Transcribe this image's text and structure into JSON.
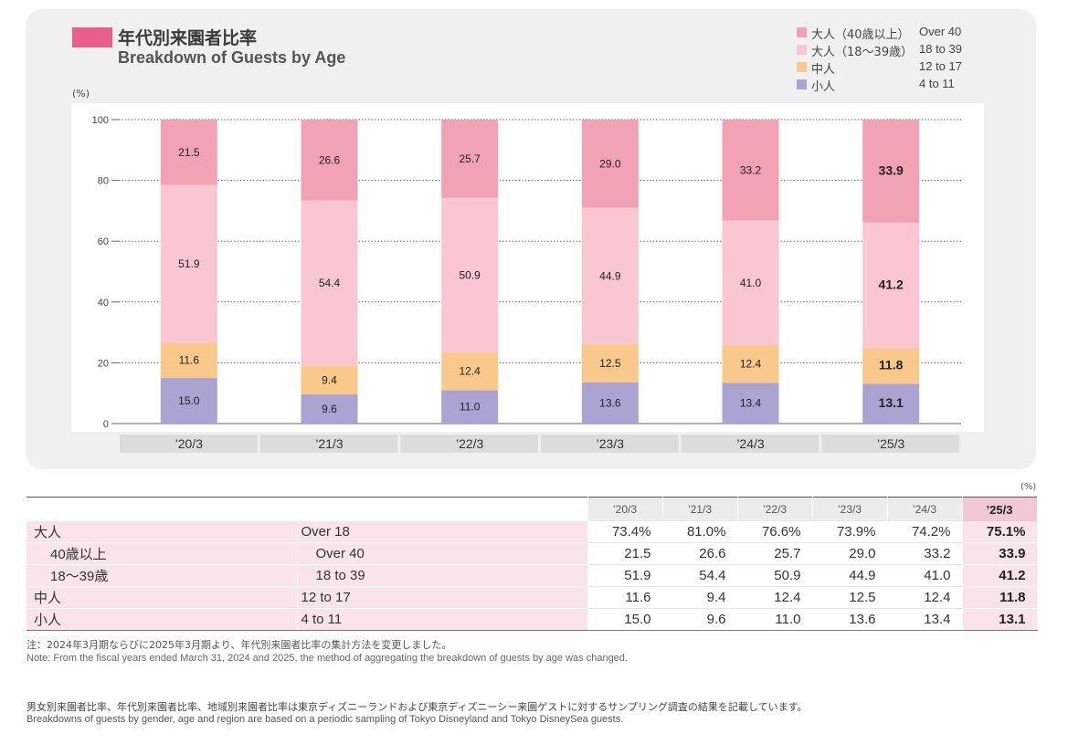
{
  "title": {
    "jp": "年代別来園者比率",
    "en": "Breakdown of Guests by Age"
  },
  "colors": {
    "title_mark": "#e8608a",
    "over40": "#f2a2b5",
    "age18to39": "#f9c6d2",
    "age12to17": "#f8c98a",
    "age4to11": "#aba3d1",
    "panel_bg": "#f0f0f0",
    "axis_label_bg": "#dcdcdc"
  },
  "legend": [
    {
      "jp": "大人（40歳以上）",
      "en": "Over 40",
      "color_key": "over40"
    },
    {
      "jp": "大人（18〜39歳）",
      "en": "18 to 39",
      "color_key": "age18to39"
    },
    {
      "jp": "中人",
      "en": "12 to 17",
      "color_key": "age12to17"
    },
    {
      "jp": "小人",
      "en": "4 to 11",
      "color_key": "age4to11"
    }
  ],
  "chart_data": {
    "type": "bar",
    "stacked": true,
    "title": "年代別来園者比率 Breakdown of Guests by Age",
    "ylabel": "(%)",
    "xlabel": "",
    "ylim": [
      0,
      100
    ],
    "yticks": [
      0,
      20,
      40,
      60,
      80,
      100
    ],
    "grid": true,
    "legend_position": "top-right",
    "categories": [
      "’20/3",
      "’21/3",
      "’22/3",
      "’23/3",
      "’24/3",
      "’25/3"
    ],
    "series": [
      {
        "name": "小人 4 to 11",
        "color_key": "age4to11",
        "values": [
          15.0,
          9.6,
          11.0,
          13.6,
          13.4,
          13.1
        ]
      },
      {
        "name": "中人 12 to 17",
        "color_key": "age12to17",
        "values": [
          11.6,
          9.4,
          12.4,
          12.5,
          12.4,
          11.8
        ]
      },
      {
        "name": "大人（18〜39歳） 18 to 39",
        "color_key": "age18to39",
        "values": [
          51.9,
          54.4,
          50.9,
          44.9,
          41.0,
          41.2
        ]
      },
      {
        "name": "大人（40歳以上） Over 40",
        "color_key": "over40",
        "values": [
          21.5,
          26.6,
          25.7,
          29.0,
          33.2,
          33.9
        ]
      }
    ],
    "value_labels": [
      [
        "15.0",
        "9.6",
        "11.0",
        "13.6",
        "13.4",
        "13.1"
      ],
      [
        "11.6",
        "9.4",
        "12.4",
        "12.5",
        "12.4",
        "11.8"
      ],
      [
        "51.9",
        "54.4",
        "50.9",
        "44.9",
        "41.0",
        "41.2"
      ],
      [
        "21.5",
        "26.6",
        "25.7",
        "29.0",
        "33.2",
        "33.9"
      ]
    ],
    "highlight_last": true
  },
  "table": {
    "unit": "(%)",
    "years": [
      "’20/3",
      "’21/3",
      "’22/3",
      "’23/3",
      "’24/3",
      "’25/3"
    ],
    "rows": [
      {
        "jp": "大人",
        "en": "Over 18",
        "sub": false,
        "values": [
          "73.4%",
          "81.0%",
          "76.6%",
          "73.9%",
          "74.2%",
          "75.1%"
        ]
      },
      {
        "jp": "40歳以上",
        "en": "Over 40",
        "sub": true,
        "values": [
          "21.5",
          "26.6",
          "25.7",
          "29.0",
          "33.2",
          "33.9"
        ]
      },
      {
        "jp": "18〜39歳",
        "en": "18 to 39",
        "sub": true,
        "values": [
          "51.9",
          "54.4",
          "50.9",
          "44.9",
          "41.0",
          "41.2"
        ]
      },
      {
        "jp": "中人",
        "en": "12 to 17",
        "sub": false,
        "values": [
          "11.6",
          "9.4",
          "12.4",
          "12.5",
          "12.4",
          "11.8"
        ]
      },
      {
        "jp": "小人",
        "en": "4 to 11",
        "sub": false,
        "values": [
          "15.0",
          "9.6",
          "11.0",
          "13.6",
          "13.4",
          "13.1"
        ]
      }
    ]
  },
  "note": {
    "jp": "注：2024年3月期ならびに2025年3月期より、年代別来園者比率の集計方法を変更しました。",
    "en": "Note: From the fiscal years ended March 31, 2024 and 2025, the method of aggregating the breakdown of guests by age was changed."
  },
  "footer": {
    "jp": "男女別来園者比率、年代別来園者比率、地域別来園者比率は東京ディズニーランドおよび東京ディズニーシー来園ゲストに対するサンプリング調査の結果を記載しています。",
    "en": "Breakdowns of guests by gender, age and region are based on a periodic sampling of Tokyo Disneyland and Tokyo DisneySea guests."
  }
}
